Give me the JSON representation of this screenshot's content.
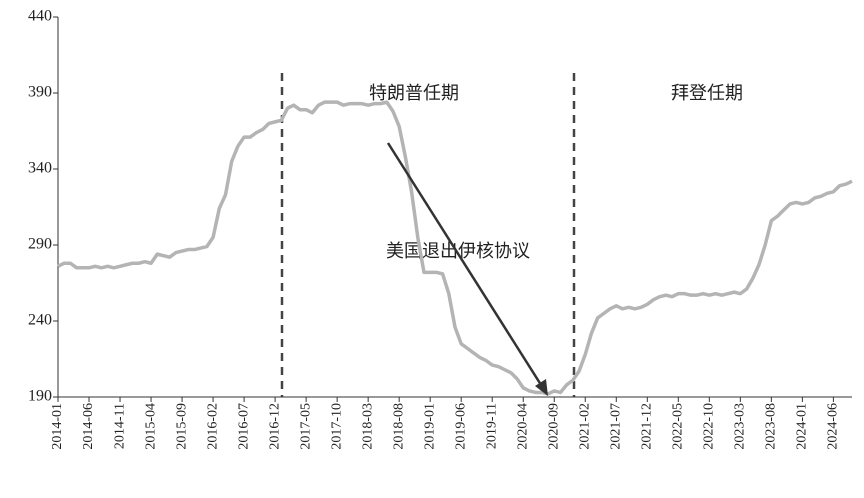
{
  "chart_data": {
    "type": "line",
    "annotations": [
      "特朗普任期",
      "拜登任期",
      "美国退出伊核协议"
    ],
    "categories": [
      "2014-01",
      null,
      null,
      null,
      null,
      "2014-06",
      null,
      null,
      null,
      null,
      "2014-11",
      null,
      null,
      null,
      null,
      "2015-04",
      null,
      null,
      null,
      null,
      "2015-09",
      null,
      null,
      null,
      null,
      "2016-02",
      null,
      null,
      null,
      null,
      "2016-07",
      null,
      null,
      null,
      null,
      "2016-12",
      null,
      null,
      null,
      null,
      "2017-05",
      null,
      null,
      null,
      null,
      "2017-10",
      null,
      null,
      null,
      null,
      "2018-03",
      null,
      null,
      null,
      null,
      "2018-08",
      null,
      null,
      null,
      null,
      "2019-01",
      null,
      null,
      null,
      null,
      "2019-06",
      null,
      null,
      null,
      null,
      "2019-11",
      null,
      null,
      null,
      null,
      "2020-04",
      null,
      null,
      null,
      null,
      "2020-09",
      null,
      null,
      null,
      null,
      "2021-02",
      null,
      null,
      null,
      null,
      "2021-07",
      null,
      null,
      null,
      null,
      "2021-12",
      null,
      null,
      null,
      null,
      "2022-05",
      null,
      null,
      null,
      null,
      "2022-10",
      null,
      null,
      null,
      null,
      "2023-03",
      null,
      null,
      null,
      null,
      "2023-08",
      null,
      null,
      null,
      null,
      "2024-01",
      null,
      null,
      null,
      null,
      "2024-06",
      null,
      null,
      null
    ],
    "values": [
      276,
      278,
      278,
      275,
      275,
      275,
      276,
      275,
      276,
      275,
      276,
      277,
      278,
      278,
      279,
      278,
      284,
      283,
      282,
      285,
      286,
      287,
      287,
      288,
      289,
      295,
      314,
      323,
      345,
      355,
      361,
      361,
      364,
      366,
      370,
      371,
      372,
      380,
      382,
      379,
      379,
      377,
      382,
      384,
      384,
      384,
      382,
      383,
      383,
      383,
      382,
      383,
      383,
      384,
      378,
      368,
      348,
      325,
      295,
      272,
      272,
      272,
      271,
      258,
      236,
      225,
      222,
      219,
      216,
      214,
      211,
      210,
      208,
      206,
      202,
      196,
      194,
      193,
      193,
      192,
      194,
      193,
      198,
      201,
      207,
      218,
      232,
      242,
      245,
      248,
      250,
      248,
      249,
      248,
      249,
      251,
      254,
      256,
      257,
      256,
      258,
      258,
      257,
      257,
      258,
      257,
      258,
      257,
      258,
      259,
      258,
      261,
      268,
      277,
      290,
      306,
      309,
      313,
      317,
      318,
      317,
      318,
      321,
      322,
      324,
      325,
      329,
      330,
      332
    ],
    "color": "#b4b4b4",
    "ylim": [
      190,
      440
    ],
    "yticks": [
      190,
      240,
      290,
      340,
      390,
      440
    ],
    "grid": false
  }
}
